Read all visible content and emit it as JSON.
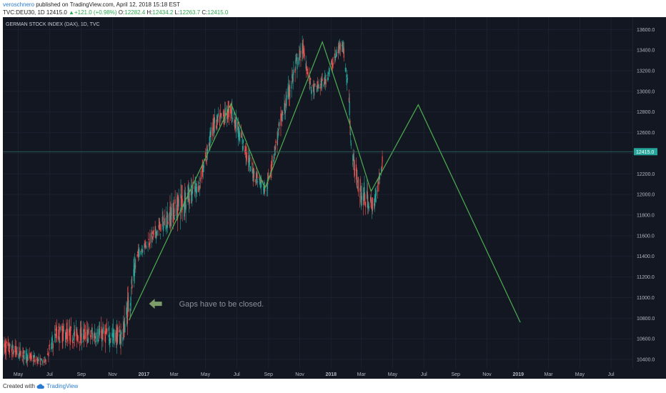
{
  "header": {
    "author": "veroschnero",
    "published_text": " published on TradingView.com, April 12, 2018 15:18 EST",
    "symbol_line": "TVC:DEU30, 1D  12415.0 ",
    "change_arrow": "▲",
    "change_text": "+121.0 (+0.98%) ",
    "o_label": "O:",
    "o_value": "12282.4",
    "h_label": " H:",
    "h_value": "12434.2",
    "l_label": " L:",
    "l_value": "12263.7",
    "c_label": " C:",
    "c_value": "12415.0"
  },
  "footer": {
    "created_with": "Created with",
    "brand": "TradingView",
    "logo_icon": "tradingview-cloud-icon"
  },
  "chart_data": {
    "type": "candlestick",
    "title": "GERMAN STOCK INDEX (DAX), 1D, TVC",
    "x_tick_labels": [
      "May",
      "Jul",
      "Sep",
      "Nov",
      "2017",
      "Mar",
      "May",
      "Jul",
      "Sep",
      "Nov",
      "2018",
      "Mar",
      "May",
      "Jul",
      "Sep",
      "Nov",
      "2019",
      "Mar",
      "May",
      "Jul"
    ],
    "y_tick_labels": [
      "10400.0",
      "10600.0",
      "10800.0",
      "11000.0",
      "11200.0",
      "11400.0",
      "11600.0",
      "11800.0",
      "12000.0",
      "12200.0",
      "12400.0",
      "12600.0",
      "12800.0",
      "13000.0",
      "13200.0",
      "13400.0",
      "13600.0"
    ],
    "ylim": [
      10310,
      13720
    ],
    "last_price": 12415.0,
    "last_price_label": "12415.0",
    "grid": true,
    "colors": {
      "background": "#131722",
      "up": "#26a69a",
      "down": "#ef5350",
      "projection": "#4caf50",
      "annotation": "#7c9c6a",
      "text": "#b2b5be"
    },
    "anchors": [
      {
        "x": "2016-04-01",
        "low": 10380,
        "high": 10660
      },
      {
        "x": "2016-06-20",
        "low": 10320,
        "high": 10420
      },
      {
        "x": "2016-07-15",
        "low": 10500,
        "high": 10800
      },
      {
        "x": "2016-09-01",
        "low": 10500,
        "high": 10770
      },
      {
        "x": "2016-10-15",
        "low": 10500,
        "high": 10780
      },
      {
        "x": "2016-11-20",
        "low": 10460,
        "high": 10780
      },
      {
        "x": "2016-12-05",
        "low": 10750,
        "high": 11250
      },
      {
        "x": "2016-12-20",
        "low": 11350,
        "high": 11500
      },
      {
        "x": "2017-02-01",
        "low": 11550,
        "high": 11800
      },
      {
        "x": "2017-03-15",
        "low": 11700,
        "high": 12150
      },
      {
        "x": "2017-04-20",
        "low": 12000,
        "high": 12200
      },
      {
        "x": "2017-05-15",
        "low": 12500,
        "high": 12800
      },
      {
        "x": "2017-06-20",
        "low": 12700,
        "high": 12950
      },
      {
        "x": "2017-08-01",
        "low": 12100,
        "high": 12350
      },
      {
        "x": "2017-08-28",
        "low": 11950,
        "high": 12150
      },
      {
        "x": "2017-09-25",
        "low": 12550,
        "high": 12850
      },
      {
        "x": "2017-10-25",
        "low": 13100,
        "high": 13400
      },
      {
        "x": "2017-11-07",
        "low": 13300,
        "high": 13530
      },
      {
        "x": "2017-11-25",
        "low": 12900,
        "high": 13100
      },
      {
        "x": "2017-12-20",
        "low": 13000,
        "high": 13200
      },
      {
        "x": "2018-01-23",
        "low": 13400,
        "high": 13580
      },
      {
        "x": "2018-02-05",
        "low": 12800,
        "high": 13100
      },
      {
        "x": "2018-02-10",
        "low": 12250,
        "high": 12500
      },
      {
        "x": "2018-03-01",
        "low": 11800,
        "high": 12200
      },
      {
        "x": "2018-03-26",
        "low": 11780,
        "high": 12000
      },
      {
        "x": "2018-04-12",
        "low": 12263.7,
        "high": 12434.2
      }
    ],
    "projection_line": [
      {
        "x": "2016-12-03",
        "y": 10780
      },
      {
        "x": "2017-06-20",
        "y": 12880
      },
      {
        "x": "2017-08-25",
        "y": 12060
      },
      {
        "x": "2017-12-15",
        "y": 13480
      },
      {
        "x": "2018-02-12",
        "y": 12600
      },
      {
        "x": "2018-03-20",
        "y": 12030
      },
      {
        "x": "2018-06-20",
        "y": 12870
      },
      {
        "x": "2019-01-05",
        "y": 10760
      }
    ],
    "annotation": {
      "text": "Gaps have to be closed.",
      "arrow_icon": "arrow-left-icon",
      "x": "2017-01-25",
      "y": 10940
    }
  }
}
